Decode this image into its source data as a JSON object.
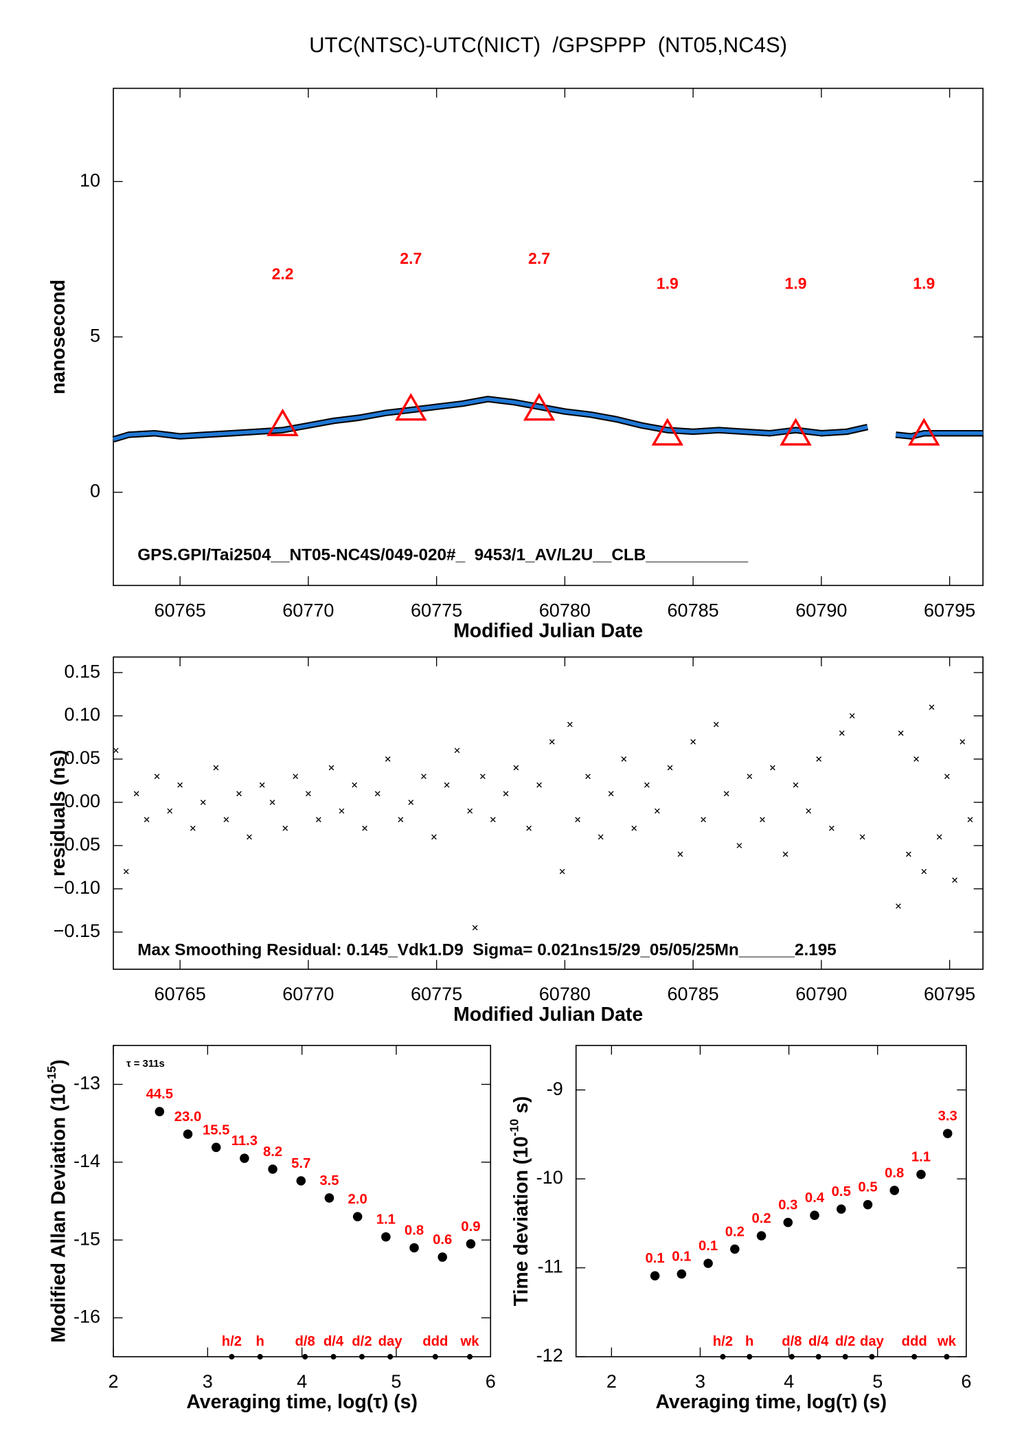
{
  "chart_data": [
    {
      "type": "line",
      "title": "UTC(NTSC)-UTC(NICT)  /GPSPPP  (NT05,NC4S)",
      "xlabel": "Modified Julian Date",
      "ylabel": "nanosecond",
      "annotation": "GPS.GPI/Tai2504__NT05-NC4S/049-020#_  9453/1_AV/L2U__CLB___________",
      "x": [
        60762.4,
        60763,
        60764,
        60765,
        60766,
        60767,
        60768,
        60769,
        60770,
        60771,
        60772,
        60773,
        60774,
        60775,
        60776,
        60777,
        60778,
        60779,
        60780,
        60781,
        60782,
        60783,
        60784,
        60785,
        60786,
        60787,
        60788,
        60789,
        60790,
        60791,
        60791.8,
        60792.3,
        60792.9,
        60793.5,
        60794,
        60795,
        60796.3
      ],
      "values": [
        1.7,
        1.85,
        1.9,
        1.8,
        1.85,
        1.9,
        1.95,
        2.0,
        2.15,
        2.3,
        2.4,
        2.55,
        2.65,
        2.75,
        2.85,
        3.0,
        2.9,
        2.75,
        2.6,
        2.5,
        2.35,
        2.15,
        2.0,
        1.95,
        2.0,
        1.95,
        1.9,
        2.0,
        1.9,
        1.95,
        2.1,
        null,
        1.85,
        1.8,
        1.9,
        1.9,
        1.9
      ],
      "color": "#1f78d4",
      "markers": {
        "x": [
          60769,
          60774,
          60779,
          60784,
          60789,
          60794
        ],
        "values": [
          2.2,
          2.7,
          2.7,
          1.9,
          1.9,
          1.9
        ],
        "color": "#ff0000"
      },
      "xlim": [
        60762.4,
        60796.3
      ],
      "ylim": [
        -3,
        13
      ],
      "xticks": [
        60765,
        60770,
        60775,
        60780,
        60785,
        60790,
        60795
      ],
      "yticks": [
        0,
        5,
        10
      ]
    },
    {
      "type": "scatter",
      "xlabel": "Modified Julian Date",
      "ylabel": "residuals (ns)",
      "annotation": "Max Smoothing Residual: 0.145_Vdk1.D9  Sigma= 0.021ns15/29_05/05/25Mn______2.195",
      "x": [
        60762.5,
        60762.9,
        60763.3,
        60763.7,
        60764.1,
        60764.6,
        60765.0,
        60765.5,
        60765.9,
        60766.4,
        60766.8,
        60767.3,
        60767.7,
        60768.2,
        60768.6,
        60769.1,
        60769.5,
        60770.0,
        60770.4,
        60770.9,
        60771.3,
        60771.8,
        60772.2,
        60772.7,
        60773.1,
        60773.6,
        60774.0,
        60774.5,
        60774.9,
        60775.4,
        60775.8,
        60776.3,
        60776.5,
        60776.8,
        60777.2,
        60777.7,
        60778.1,
        60778.6,
        60779.0,
        60779.5,
        60779.9,
        60780.2,
        60780.5,
        60780.9,
        60781.4,
        60781.8,
        60782.3,
        60782.7,
        60783.2,
        60783.6,
        60784.1,
        60784.5,
        60785.0,
        60785.4,
        60785.9,
        60786.3,
        60786.8,
        60787.2,
        60787.7,
        60788.1,
        60788.6,
        60789.0,
        60789.5,
        60789.9,
        60790.4,
        60790.8,
        60791.2,
        60791.6,
        60793.0,
        60793.1,
        60793.4,
        60793.7,
        60794.0,
        60794.3,
        60794.6,
        60794.9,
        60795.2,
        60795.5,
        60795.8
      ],
      "values": [
        0.06,
        -0.08,
        0.01,
        -0.02,
        0.03,
        -0.01,
        0.02,
        -0.03,
        0.0,
        0.04,
        -0.02,
        0.01,
        -0.04,
        0.02,
        0.0,
        -0.03,
        0.03,
        0.01,
        -0.02,
        0.04,
        -0.01,
        0.02,
        -0.03,
        0.01,
        0.05,
        -0.02,
        0.0,
        0.03,
        -0.04,
        0.02,
        0.06,
        -0.01,
        -0.145,
        0.03,
        -0.02,
        0.01,
        0.04,
        -0.03,
        0.02,
        0.07,
        -0.08,
        0.09,
        -0.02,
        0.03,
        -0.04,
        0.01,
        0.05,
        -0.03,
        0.02,
        -0.01,
        0.04,
        -0.06,
        0.07,
        -0.02,
        0.09,
        0.01,
        -0.05,
        0.03,
        -0.02,
        0.04,
        -0.06,
        0.02,
        -0.01,
        0.05,
        -0.03,
        0.08,
        0.1,
        -0.04,
        -0.12,
        0.08,
        -0.06,
        0.05,
        -0.08,
        0.11,
        -0.04,
        0.03,
        -0.09,
        0.07,
        -0.02
      ],
      "color": "#000000",
      "xlim": [
        60762.4,
        60796.3
      ],
      "ylim": [
        -0.193,
        0.168
      ],
      "xticks": [
        60765,
        60770,
        60775,
        60780,
        60785,
        60790,
        60795
      ],
      "yticks": [
        {
          "value": -0.15,
          "label": "−0.15"
        },
        {
          "value": -0.1,
          "label": "−0.10"
        },
        {
          "value": -0.05,
          "label": "−0.05"
        },
        {
          "value": 0,
          "label": "0.00"
        },
        {
          "value": 0.05,
          "label": "0.05"
        },
        {
          "value": 0.1,
          "label": "0.10"
        },
        {
          "value": 0.15,
          "label": "0.15"
        }
      ]
    },
    {
      "type": "scatter",
      "xlabel": "Averaging time, log(τ) (s)",
      "ylabel": {
        "text": "Modified Allan Deviation (10",
        "sup": "-15",
        "tail": ")"
      },
      "annotation": "τ = 311s",
      "x": [
        2.49,
        2.79,
        3.09,
        3.39,
        3.69,
        3.99,
        4.29,
        4.59,
        4.89,
        5.19,
        5.49,
        5.79
      ],
      "values": [
        -13.35,
        -13.64,
        -13.81,
        -13.95,
        -14.09,
        -14.24,
        -14.46,
        -14.7,
        -14.96,
        -15.1,
        -15.22,
        -15.05
      ],
      "point_labels": [
        "44.5",
        "23.0",
        "15.5",
        "11.3",
        "8.2",
        "5.7",
        "3.5",
        "2.0",
        "1.1",
        "0.8",
        "0.6",
        "0.9"
      ],
      "color": "#000000",
      "label_color": "#ff0000",
      "reference_marks": {
        "labels": [
          "h/2",
          "h",
          "d/8",
          "d/4",
          "d/2",
          "day",
          "ddd",
          "wk"
        ],
        "x": [
          3.255,
          3.556,
          4.033,
          4.334,
          4.636,
          4.936,
          5.414,
          5.78
        ]
      },
      "xlim": [
        2,
        6
      ],
      "ylim": [
        -16.5,
        -12.5
      ],
      "xticks": [
        2,
        3,
        4,
        5,
        6
      ],
      "yticks": [
        -16,
        -15,
        -14,
        -13
      ]
    },
    {
      "type": "scatter",
      "xlabel": "Averaging time, log(τ) (s)",
      "ylabel": {
        "text": "Time deviation (10",
        "sup": "-10",
        "tail": " s)"
      },
      "x": [
        2.49,
        2.79,
        3.09,
        3.39,
        3.69,
        3.99,
        4.29,
        4.59,
        4.89,
        5.19,
        5.49,
        5.79
      ],
      "values": [
        -11.09,
        -11.07,
        -10.95,
        -10.79,
        -10.64,
        -10.49,
        -10.41,
        -10.34,
        -10.29,
        -10.13,
        -9.95,
        -9.49
      ],
      "point_labels": [
        "0.1",
        "0.1",
        "0.1",
        "0.2",
        "0.2",
        "0.3",
        "0.4",
        "0.5",
        "0.5",
        "0.8",
        "1.1",
        "3.3"
      ],
      "color": "#000000",
      "label_color": "#ff0000",
      "reference_marks": {
        "labels": [
          "h/2",
          "h",
          "d/8",
          "d/4",
          "d/2",
          "day",
          "ddd",
          "wk"
        ],
        "x": [
          3.255,
          3.556,
          4.033,
          4.334,
          4.636,
          4.936,
          5.414,
          5.78
        ]
      },
      "xlim": [
        1.6,
        6
      ],
      "ylim": [
        -12,
        -8.5
      ],
      "xticks": [
        2,
        3,
        4,
        5,
        6
      ],
      "yticks": [
        -12,
        -11,
        -10,
        -9
      ]
    }
  ]
}
